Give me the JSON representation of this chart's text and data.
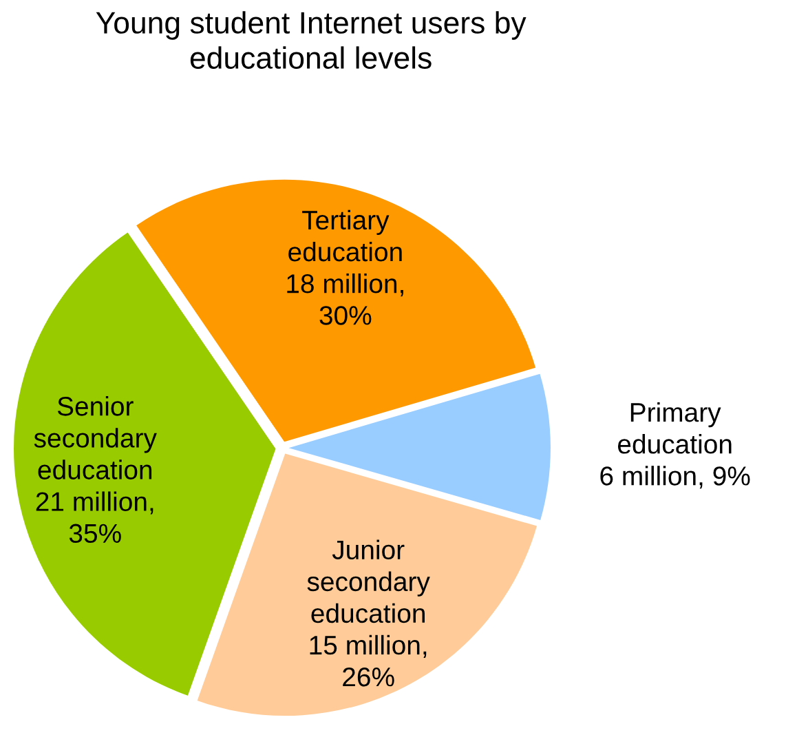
{
  "chart_data": {
    "type": "pie",
    "title": "Young student Internet users by\neducational levels",
    "categories": [
      "Primary\neducation",
      "Tertiary\neducation",
      "Senior\nsecondary\neducation",
      "Junior\nsecondary\neducation"
    ],
    "values": [
      9,
      30,
      35,
      26
    ],
    "value_labels": [
      "6 million, 9%",
      "18 million,\n30%",
      "21 million,\n35%",
      "15 million,\n26%"
    ],
    "colors": [
      "#99ccff",
      "#ff9900",
      "#99cc00",
      "#ffcc99"
    ],
    "legend": false
  }
}
